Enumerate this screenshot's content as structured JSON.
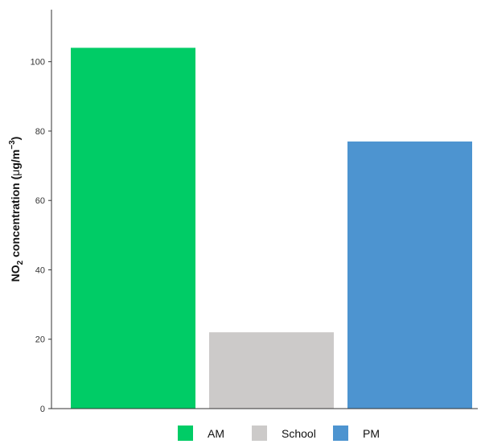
{
  "chart_data": {
    "type": "bar",
    "categories": [
      "AM",
      "School",
      "PM"
    ],
    "values": [
      104,
      22,
      77
    ],
    "colors": [
      "#00cc66",
      "#cccac9",
      "#4d94d0"
    ],
    "ylabel": {
      "base": "NO",
      "sub": "2",
      "mid": " concentration (",
      "mu": "μ",
      "unit": "g/m",
      "sup": "−3",
      "end": ")"
    },
    "yticks": [
      0,
      20,
      40,
      60,
      80,
      100
    ],
    "ylim": [
      0,
      115
    ],
    "grid": false,
    "legend": {
      "placement": "bottom",
      "entries": [
        "AM",
        "School",
        "PM"
      ]
    }
  }
}
